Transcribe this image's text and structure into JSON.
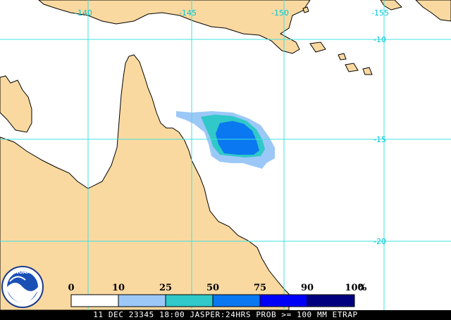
{
  "map": {
    "longitude_labels": [
      "-140",
      "-145",
      "-150",
      "-155"
    ],
    "latitude_labels": [
      "-10",
      "-15",
      "-20"
    ],
    "colors": {
      "ocean": "#ffffff",
      "land": "#fad9a0",
      "coast": "#000000",
      "grid": "#40e0e0",
      "label": "#00c8d8"
    }
  },
  "legend": {
    "tick_labels": [
      "0",
      "10",
      "25",
      "50",
      "75",
      "90",
      "100"
    ],
    "unit": "%",
    "bins": [
      {
        "range": "0-10",
        "color": "#ffffff"
      },
      {
        "range": "10-25",
        "color": "#9cc8f8"
      },
      {
        "range": "25-50",
        "color": "#30c8c8"
      },
      {
        "range": "50-75",
        "color": "#0a78f0"
      },
      {
        "range": "75-90",
        "color": "#0000f8"
      },
      {
        "range": "90-100",
        "color": "#00007f"
      }
    ]
  },
  "logo": {
    "text": "NOAA"
  },
  "footer": {
    "caption": "11 DEC 23345 18:00 JASPER:24HRS PROB >= 100 MM ETRAP"
  }
}
